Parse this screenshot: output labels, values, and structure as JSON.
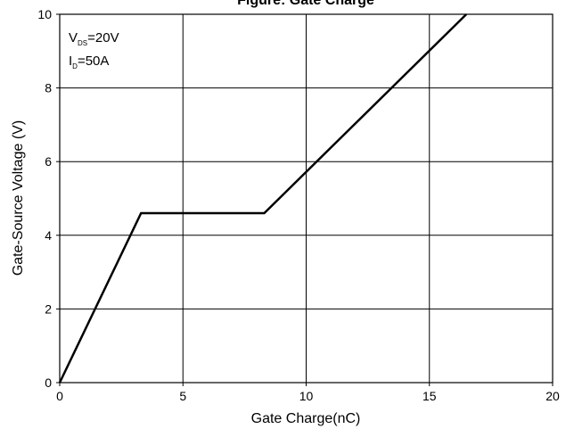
{
  "chart_data": {
    "type": "line",
    "title": "Figure: Gate Charge",
    "xlabel": "Gate Charge(nC)",
    "ylabel": "Gate-Source Voltage (V)",
    "xlim": [
      0,
      20
    ],
    "ylim": [
      0,
      10
    ],
    "xticks": [
      "0",
      "5",
      "10",
      "15",
      "20"
    ],
    "yticks": [
      "0",
      "2",
      "4",
      "6",
      "8",
      "10"
    ],
    "grid": true,
    "series": [
      {
        "x": [
          0,
          3.3,
          8.3,
          16.5
        ],
        "y": [
          0,
          4.6,
          4.6,
          10
        ],
        "color": "#000000"
      }
    ],
    "annotations": {
      "vds_main": "V",
      "vds_sub": "DS",
      "vds_value": "=20V",
      "id_main": "I",
      "id_sub": "D",
      "id_value": "=50A"
    }
  }
}
